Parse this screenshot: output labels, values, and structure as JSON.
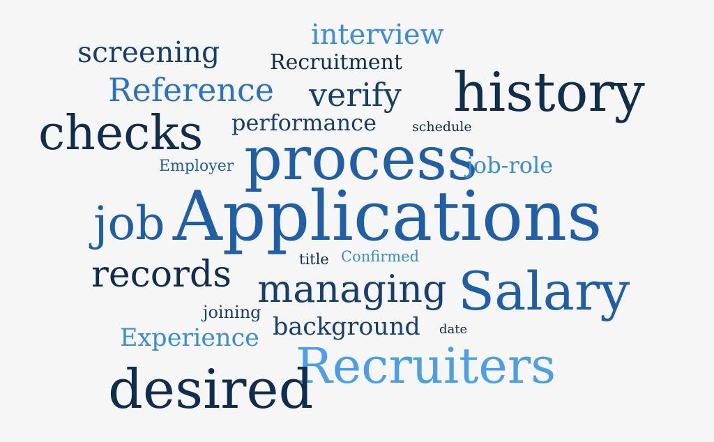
{
  "words": {
    "interview": "interview",
    "screening": "screening",
    "recruitment": "Recruitment",
    "reference": "Reference",
    "verify": "verify",
    "history": "history",
    "checks": "checks",
    "performance": "performance",
    "schedule": "schedule",
    "process": "process",
    "employer": "Employer",
    "job_role": "job-role",
    "job": "job",
    "applications": "Applications",
    "title": "title",
    "confirmed": "Confirmed",
    "records": "records",
    "managing": "managing",
    "salary": "Salary",
    "joining": "joining",
    "background": "background",
    "date": "date",
    "experience": "Experience",
    "recruiters": "Recruiters",
    "desired": "desired"
  },
  "colors": {
    "background": "#f6f6f6",
    "dark": "#0f2d4f",
    "navy": "#163f70",
    "mid": "#1f5fa8",
    "blue": "#2a72c6",
    "light": "#3a8ddb",
    "sky": "#4a9fe8"
  }
}
